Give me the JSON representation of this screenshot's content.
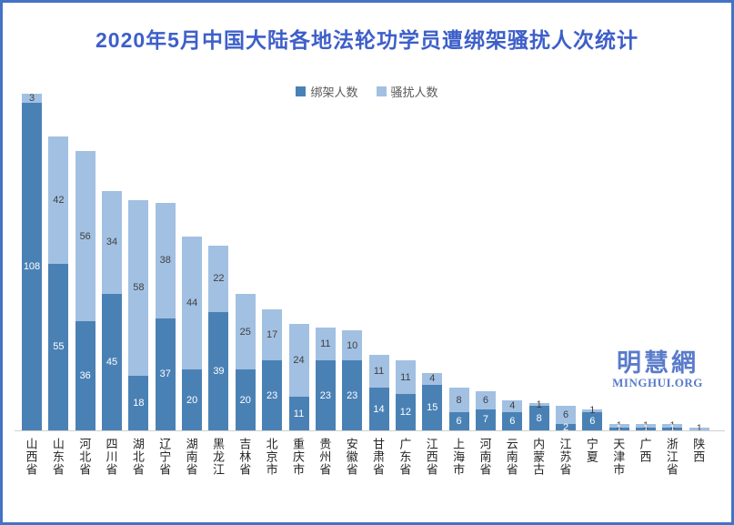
{
  "window": {
    "border_color": "#4472c4",
    "background_color": "#ffffff"
  },
  "header": {
    "title": "2020年5月中国大陆各地法轮功学员遭绑架骚扰人次统计",
    "title_color": "#3d5fc9"
  },
  "legend": [
    {
      "label": "绑架人数",
      "color": "#4a81b5"
    },
    {
      "label": "骚扰人数",
      "color": "#a2c0e2"
    }
  ],
  "watermark": {
    "line1": "明慧網",
    "line2": "MINGHUI.ORG",
    "color": "#5a7bcb"
  },
  "chart_data": {
    "type": "bar",
    "stacked": true,
    "title": "2020年5月中国大陆各地法轮功学员遭绑架骚扰人次统计",
    "legend_position": "top",
    "grid": false,
    "data_labels": "center",
    "ylim": [
      0,
      111
    ],
    "categories": [
      "山西省",
      "山东省",
      "河北省",
      "四川省",
      "湖北省",
      "辽宁省",
      "湖南省",
      "黑龙江",
      "吉林省",
      "北京市",
      "重庆市",
      "贵州省",
      "安徽省",
      "甘肃省",
      "广东省",
      "江西省",
      "上海市",
      "河南省",
      "云南省",
      "内蒙古",
      "江苏省",
      "宁夏",
      "天津市",
      "广西",
      "浙江省",
      "陕西"
    ],
    "series": [
      {
        "name": "绑架人数",
        "color": "#4a81b5",
        "label_color": "#ffffff",
        "values": [
          108,
          55,
          36,
          45,
          18,
          37,
          20,
          39,
          20,
          23,
          11,
          23,
          23,
          14,
          12,
          15,
          6,
          7,
          6,
          8,
          2,
          6,
          1,
          1,
          1,
          0
        ]
      },
      {
        "name": "骚扰人数",
        "color": "#a2c0e2",
        "label_color": "#404040",
        "values": [
          3,
          42,
          56,
          34,
          58,
          38,
          44,
          22,
          25,
          17,
          24,
          11,
          10,
          11,
          11,
          4,
          8,
          6,
          4,
          1,
          6,
          1,
          1,
          1,
          1,
          1
        ]
      }
    ]
  }
}
